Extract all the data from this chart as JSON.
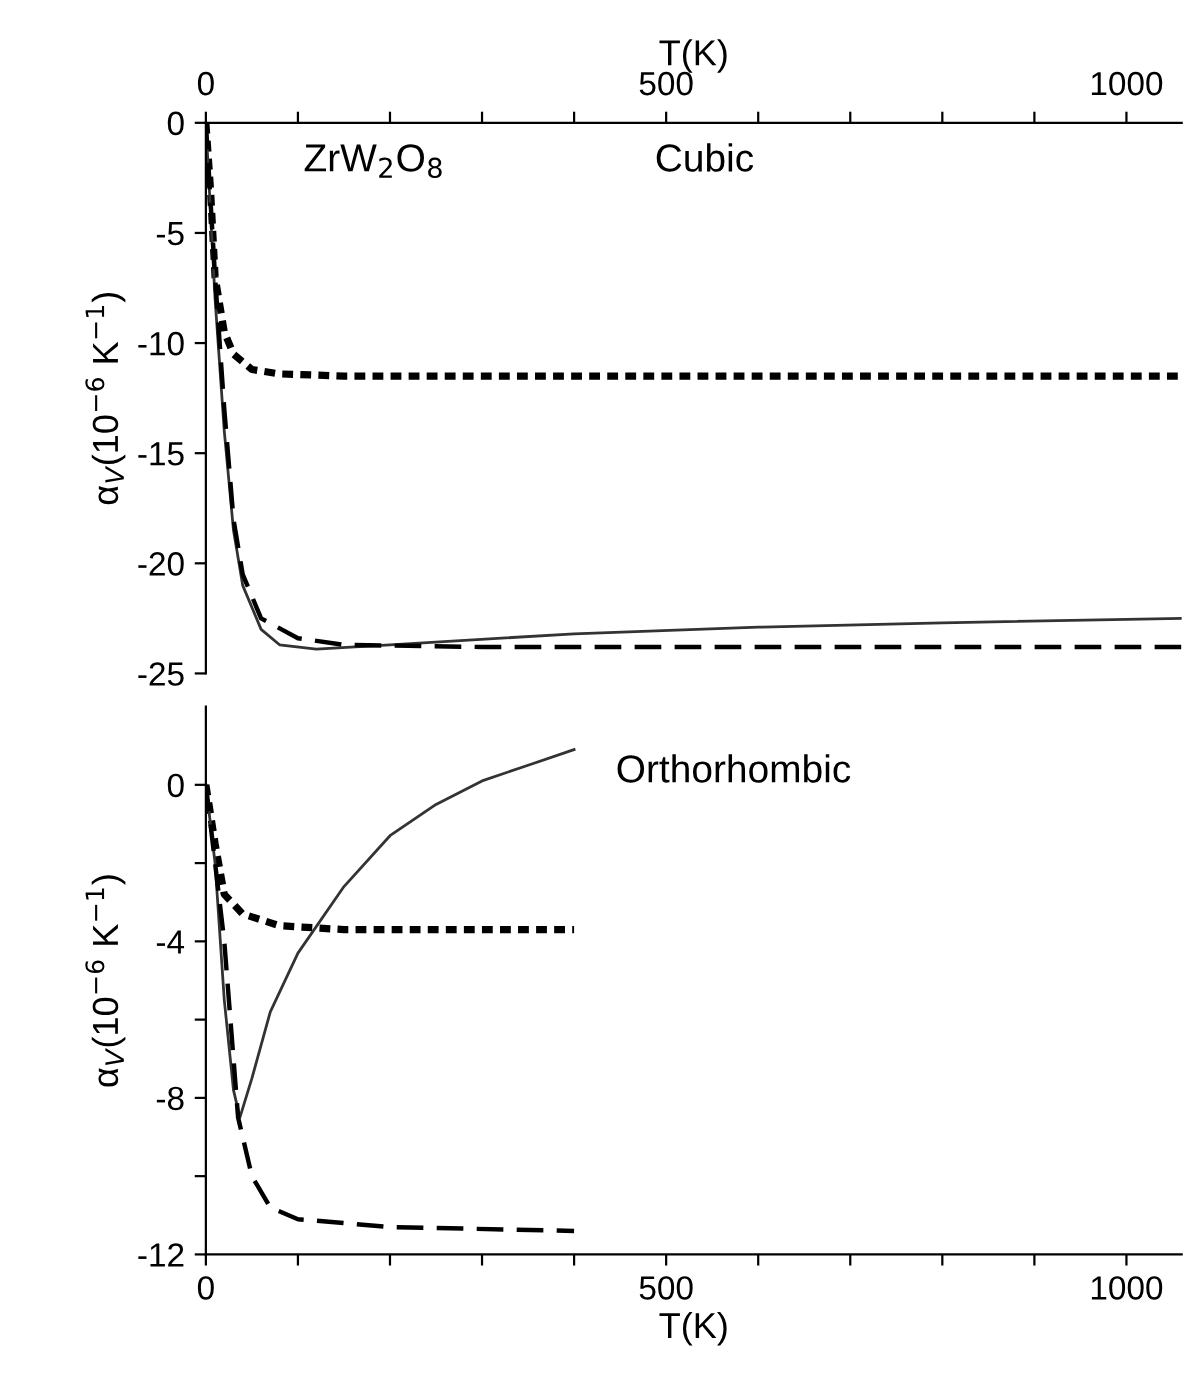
{
  "chart_data": [
    {
      "type": "line",
      "xlabel": "T(K)",
      "ylabel": "α$_{V}$(10$^{−6}$ K$^{−1}$)",
      "xlim": [
        0,
        1060
      ],
      "xticks": [
        0,
        {
          "value": 100,
          "label": null
        },
        {
          "value": 200,
          "label": null
        },
        {
          "value": 300,
          "label": null
        },
        {
          "value": 400,
          "label": null
        },
        500,
        {
          "value": 600,
          "label": null
        },
        {
          "value": 700,
          "label": null
        },
        {
          "value": 800,
          "label": null
        },
        {
          "value": 900,
          "label": null
        },
        1000
      ],
      "ylim": [
        -25,
        0
      ],
      "yticks": [
        0,
        -5,
        -10,
        -15,
        -20,
        -25
      ],
      "grid": false,
      "legend": false,
      "annotations": [
        "ZrW$_{2}$O$_{8}$",
        "Cubic"
      ],
      "series": [
        {
          "color": "#000000",
          "line_style": "dotted",
          "x": [
            0,
            5,
            10,
            20,
            30,
            50,
            80,
            150,
            1060
          ],
          "values": [
            0,
            -3,
            -7,
            -9.5,
            -10.5,
            -11.2,
            -11.4,
            -11.5,
            -11.5
          ]
        },
        {
          "color": "#333333",
          "line_style": "solid",
          "x": [
            0,
            10,
            20,
            30,
            40,
            60,
            80,
            120,
            200,
            400,
            600,
            800,
            1060
          ],
          "values": [
            0,
            -8,
            -14,
            -18.5,
            -21,
            -23,
            -23.7,
            -23.9,
            -23.7,
            -23.2,
            -22.9,
            -22.7,
            -22.5
          ]
        },
        {
          "color": "#000000",
          "line_style": "dashed",
          "x": [
            0,
            10,
            20,
            30,
            40,
            60,
            100,
            150,
            300,
            1060
          ],
          "values": [
            0,
            -7,
            -13,
            -18,
            -20.5,
            -22.5,
            -23.4,
            -23.7,
            -23.8,
            -23.8
          ]
        }
      ]
    },
    {
      "type": "line",
      "xlabel": "T(K)",
      "ylabel": "α$_{V}$(10$^{−6}$ K$^{−1}$)",
      "xlim": [
        0,
        1060
      ],
      "xticks": [
        0,
        {
          "value": 100,
          "label": null
        },
        {
          "value": 200,
          "label": null
        },
        {
          "value": 300,
          "label": null
        },
        {
          "value": 400,
          "label": null
        },
        500,
        {
          "value": 600,
          "label": null
        },
        {
          "value": 700,
          "label": null
        },
        {
          "value": 800,
          "label": null
        },
        {
          "value": 900,
          "label": null
        },
        1000
      ],
      "ylim": [
        -12,
        2
      ],
      "yticks": [
        0,
        {
          "value": -2,
          "label": null
        },
        -4,
        {
          "value": -6,
          "label": null
        },
        -8,
        {
          "value": -10,
          "label": null
        },
        -12
      ],
      "grid": false,
      "legend": false,
      "annotations": [
        "Orthorhombic"
      ],
      "series": [
        {
          "color": "#000000",
          "line_style": "dotted",
          "x": [
            0,
            10,
            20,
            40,
            80,
            150,
            400
          ],
          "values": [
            0,
            -1.5,
            -2.8,
            -3.3,
            -3.6,
            -3.7,
            -3.7
          ]
        },
        {
          "color": "#333333",
          "line_style": "solid",
          "x": [
            0,
            10,
            20,
            30,
            37,
            50,
            70,
            100,
            150,
            200,
            250,
            300,
            350,
            400
          ],
          "values": [
            0,
            -2,
            -5.5,
            -7.8,
            -8.5,
            -7.5,
            -5.8,
            -4.3,
            -2.6,
            -1.3,
            -0.5,
            0.1,
            0.5,
            0.9
          ]
        },
        {
          "color": "#000000",
          "line_style": "dashed",
          "x": [
            0,
            20,
            35,
            50,
            70,
            100,
            200,
            400
          ],
          "values": [
            0,
            -4,
            -8.5,
            -10,
            -10.8,
            -11.1,
            -11.3,
            -11.4
          ]
        }
      ]
    }
  ]
}
